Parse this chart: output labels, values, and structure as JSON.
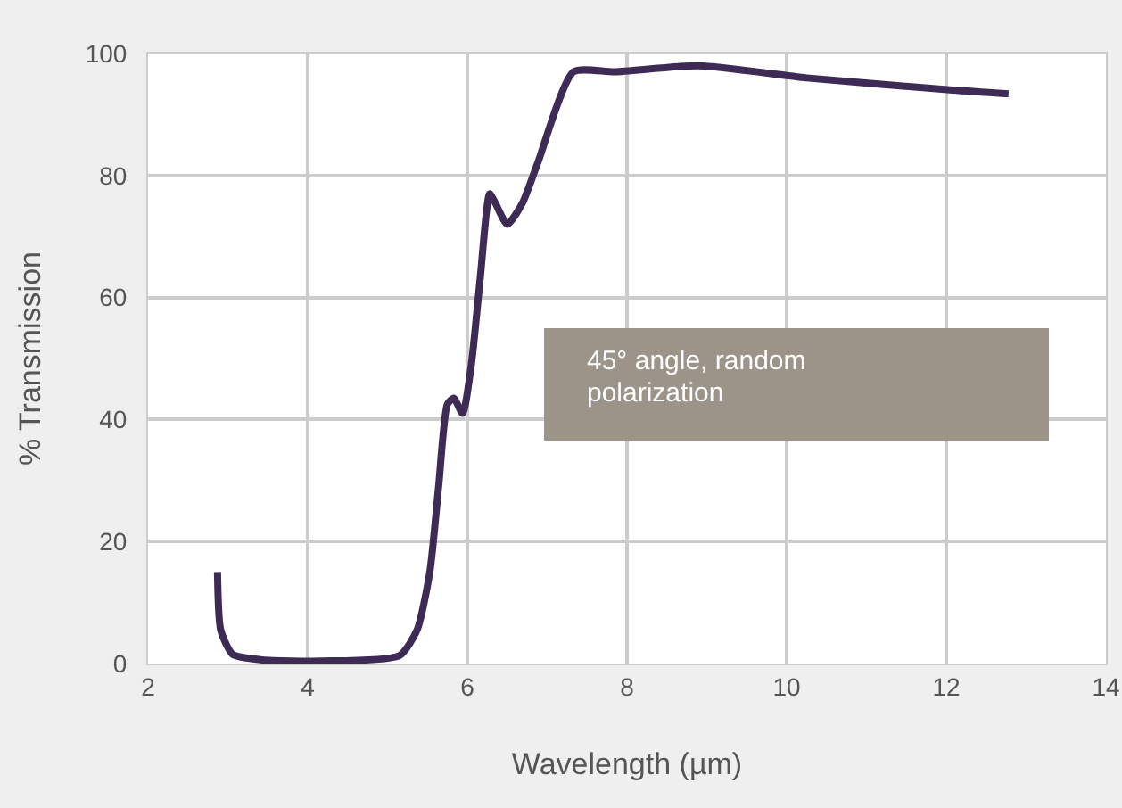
{
  "chart_data": {
    "type": "line",
    "xlabel": "Wavelength (µm)",
    "ylabel": "% Transmission",
    "x": [
      2.87,
      2.91,
      3.06,
      3.43,
      4.18,
      5.15,
      5.37,
      5.53,
      5.64,
      5.75,
      5.83,
      5.94,
      6.05,
      6.16,
      6.28,
      6.35,
      6.5,
      6.69,
      6.88,
      7.33,
      7.85,
      8.9,
      10.25,
      12.08,
      12.78
    ],
    "series": [
      {
        "color": "#3d2b55",
        "values": [
          15,
          5.5,
          1.5,
          0.6,
          0.4,
          1.3,
          5.5,
          15,
          29,
          42.5,
          43.5,
          41,
          49,
          63,
          77,
          75.5,
          72,
          75.5,
          82,
          97,
          97,
          98,
          96,
          94,
          93.4
        ]
      }
    ],
    "xlim": [
      2,
      14
    ],
    "xticks": [
      2,
      4,
      6,
      8,
      10,
      12,
      14
    ],
    "ylim": [
      0,
      100
    ],
    "yticks": [
      0,
      20,
      40,
      60,
      80,
      100
    ],
    "grid": true,
    "line_style": "solid",
    "annotations": [
      "45° angle, random\npolarization"
    ]
  }
}
